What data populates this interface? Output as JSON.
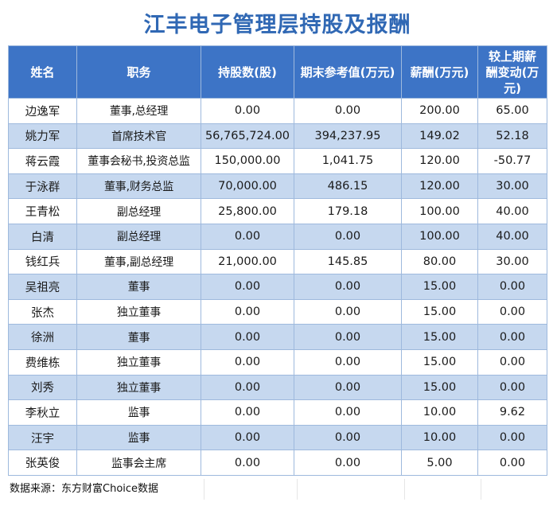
{
  "title": "江丰电子管理层持股及报酬",
  "columns": [
    "姓名",
    "职务",
    "持股数(股)",
    "期末参考值(万元)",
    "薪酬(万元)",
    "较上期薪酬变动(万元)"
  ],
  "rows": [
    [
      "边逸军",
      "董事,总经理",
      "0.00",
      "0.00",
      "200.00",
      "65.00"
    ],
    [
      "姚力军",
      "首席技术官",
      "56,765,724.00",
      "394,237.95",
      "149.02",
      "52.18"
    ],
    [
      "蒋云霞",
      "董事会秘书,投资总监",
      "150,000.00",
      "1,041.75",
      "120.00",
      "-50.77"
    ],
    [
      "于泳群",
      "董事,财务总监",
      "70,000.00",
      "486.15",
      "120.00",
      "30.00"
    ],
    [
      "王青松",
      "副总经理",
      "25,800.00",
      "179.18",
      "100.00",
      "40.00"
    ],
    [
      "白清",
      "副总经理",
      "0.00",
      "0.00",
      "100.00",
      "40.00"
    ],
    [
      "钱红兵",
      "董事,副总经理",
      "21,000.00",
      "145.85",
      "80.00",
      "30.00"
    ],
    [
      "吴祖亮",
      "董事",
      "0.00",
      "0.00",
      "15.00",
      "0.00"
    ],
    [
      "张杰",
      "独立董事",
      "0.00",
      "0.00",
      "15.00",
      "0.00"
    ],
    [
      "徐洲",
      "董事",
      "0.00",
      "0.00",
      "15.00",
      "0.00"
    ],
    [
      "费维栋",
      "独立董事",
      "0.00",
      "0.00",
      "15.00",
      "0.00"
    ],
    [
      "刘秀",
      "独立董事",
      "0.00",
      "0.00",
      "15.00",
      "0.00"
    ],
    [
      "李秋立",
      "监事",
      "0.00",
      "0.00",
      "10.00",
      "9.62"
    ],
    [
      "汪宇",
      "监事",
      "0.00",
      "0.00",
      "10.00",
      "0.00"
    ],
    [
      "张英俊",
      "监事会主席",
      "0.00",
      "0.00",
      "5.00",
      "0.00"
    ]
  ],
  "source": "数据来源：东方财富Choice数据",
  "colors": {
    "header_bg": "#3d74c6",
    "title": "#3068b4",
    "band": "#c6d8ef",
    "border": "#9eb9dd"
  }
}
